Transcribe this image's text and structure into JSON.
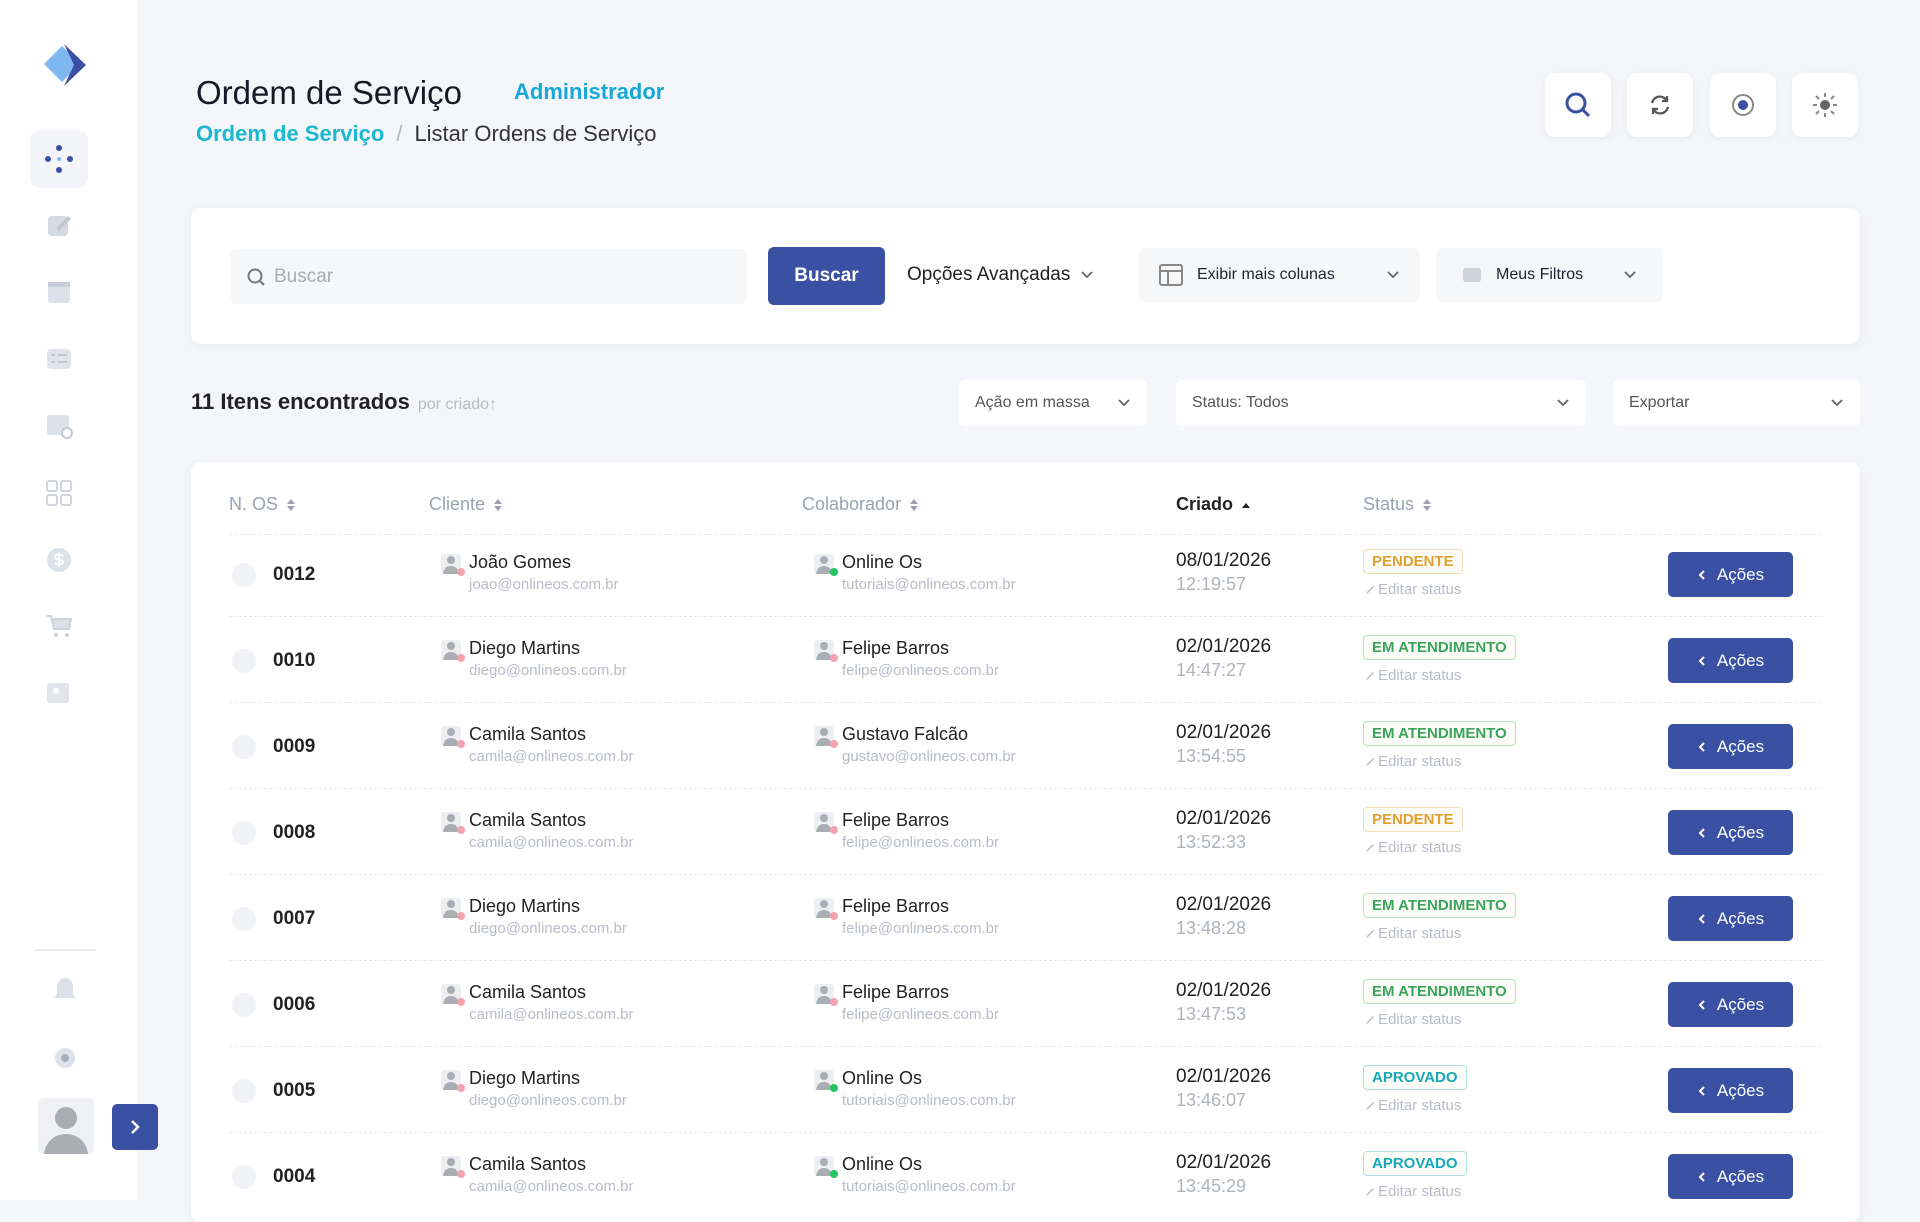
{
  "header": {
    "title": "Ordem de Serviço",
    "role": "Administrador",
    "breadcrumb": [
      "Ordem de Serviço",
      "Listar Ordens de Serviço"
    ],
    "breadcrumb_separator": "/"
  },
  "toolbar": {
    "search_placeholder": "Buscar",
    "search_button": "Buscar",
    "advanced": "Opções Avançadas",
    "columns": "Exibir mais colunas",
    "filters": "Meus Filtros"
  },
  "results": {
    "count": "11 Itens encontrados",
    "sort": "por criado↑",
    "bulk": "Ação em massa",
    "status_filter": "Status: Todos",
    "export": "Exportar"
  },
  "table": {
    "columns": [
      "N. OS",
      "Cliente",
      "Colaborador",
      "Criado",
      "Status"
    ],
    "edit_label": "Editar status",
    "action_label": "Ações",
    "rows": [
      {
        "id": "0012",
        "client": "João Gomes",
        "client_email": "joao@onlineos.com.br",
        "collaborator": "Online Os",
        "collaborator_email": "tutoriais@onlineos.com.br",
        "collaborator_dot": "#22c55e",
        "date": "08/01/2026",
        "time": "12:19:57",
        "status": "PENDENTE",
        "status_color": "#e0a030"
      },
      {
        "id": "0010",
        "client": "Diego Martins",
        "client_email": "diego@onlineos.com.br",
        "collaborator": "Felipe Barros",
        "collaborator_email": "felipe@onlineos.com.br",
        "collaborator_dot": "#f3a3ad",
        "date": "02/01/2026",
        "time": "14:47:27",
        "status": "EM ATENDIMENTO",
        "status_color": "#3aa55a"
      },
      {
        "id": "0009",
        "client": "Camila Santos",
        "client_email": "camila@onlineos.com.br",
        "collaborator": "Gustavo Falcão",
        "collaborator_email": "gustavo@onlineos.com.br",
        "collaborator_dot": "#f3a3ad",
        "date": "02/01/2026",
        "time": "13:54:55",
        "status": "EM ATENDIMENTO",
        "status_color": "#3aa55a"
      },
      {
        "id": "0008",
        "client": "Camila Santos",
        "client_email": "camila@onlineos.com.br",
        "collaborator": "Felipe Barros",
        "collaborator_email": "felipe@onlineos.com.br",
        "collaborator_dot": "#f3a3ad",
        "date": "02/01/2026",
        "time": "13:52:33",
        "status": "PENDENTE",
        "status_color": "#e0a030"
      },
      {
        "id": "0007",
        "client": "Diego Martins",
        "client_email": "diego@onlineos.com.br",
        "collaborator": "Felipe Barros",
        "collaborator_email": "felipe@onlineos.com.br",
        "collaborator_dot": "#f3a3ad",
        "date": "02/01/2026",
        "time": "13:48:28",
        "status": "EM ATENDIMENTO",
        "status_color": "#3aa55a"
      },
      {
        "id": "0006",
        "client": "Camila Santos",
        "client_email": "camila@onlineos.com.br",
        "collaborator": "Felipe Barros",
        "collaborator_email": "felipe@onlineos.com.br",
        "collaborator_dot": "#f3a3ad",
        "date": "02/01/2026",
        "time": "13:47:53",
        "status": "EM ATENDIMENTO",
        "status_color": "#3aa55a"
      },
      {
        "id": "0005",
        "client": "Diego Martins",
        "client_email": "diego@onlineos.com.br",
        "collaborator": "Online Os",
        "collaborator_email": "tutoriais@onlineos.com.br",
        "collaborator_dot": "#22c55e",
        "date": "02/01/2026",
        "time": "13:46:07",
        "status": "APROVADO",
        "status_color": "#18a8b8"
      },
      {
        "id": "0004",
        "client": "Camila Santos",
        "client_email": "camila@onlineos.com.br",
        "collaborator": "Online Os",
        "collaborator_email": "tutoriais@onlineos.com.br",
        "collaborator_dot": "#22c55e",
        "date": "02/01/2026",
        "time": "13:45:29",
        "status": "APROVADO",
        "status_color": "#18a8b8"
      }
    ]
  }
}
